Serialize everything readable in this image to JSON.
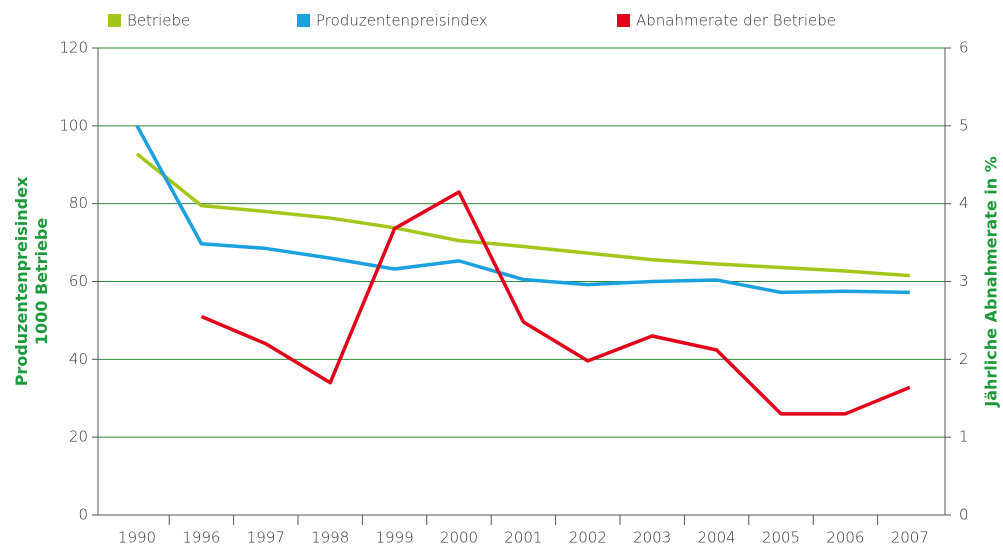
{
  "chart_data": {
    "type": "line",
    "categories": [
      "1990",
      "1996",
      "1997",
      "1998",
      "1999",
      "2000",
      "2001",
      "2002",
      "2003",
      "2004",
      "2005",
      "2006",
      "2007"
    ],
    "series": [
      {
        "name": "Betriebe",
        "color": "#a4c51a",
        "values": [
          92.8,
          79.5,
          78,
          76.3,
          73.8,
          70.5,
          69,
          67.3,
          65.6,
          64.5,
          63.6,
          62.7,
          61.5
        ]
      },
      {
        "name": "Produzentenpreisindex",
        "color": "#1ba0e0",
        "values": [
          100,
          69.7,
          68.5,
          66,
          63.2,
          65.3,
          60.5,
          59.2,
          60,
          60.4,
          57.2,
          57.5,
          57.2
        ]
      },
      {
        "name": "Abnahmerate der Betriebe",
        "color": "#e2001a",
        "axis": "y2",
        "values": [
          null,
          2.55,
          2.2,
          1.7,
          3.68,
          4.15,
          2.48,
          1.98,
          2.3,
          2.12,
          1.3,
          1.3,
          1.64
        ]
      }
    ],
    "ylabel": [
      "Produzentenpreisindex",
      "1000 Betriebe"
    ],
    "y2label": "Jährliche Abnahmerate in %",
    "ylim": [
      0,
      120
    ],
    "yticks": [
      0,
      20,
      40,
      60,
      80,
      100,
      120
    ],
    "y2lim": [
      0,
      6
    ],
    "y2ticks": [
      0,
      1,
      2,
      3,
      4,
      5,
      6
    ],
    "grid": true,
    "grid_color": "#2e8b3e",
    "legend": "top"
  }
}
